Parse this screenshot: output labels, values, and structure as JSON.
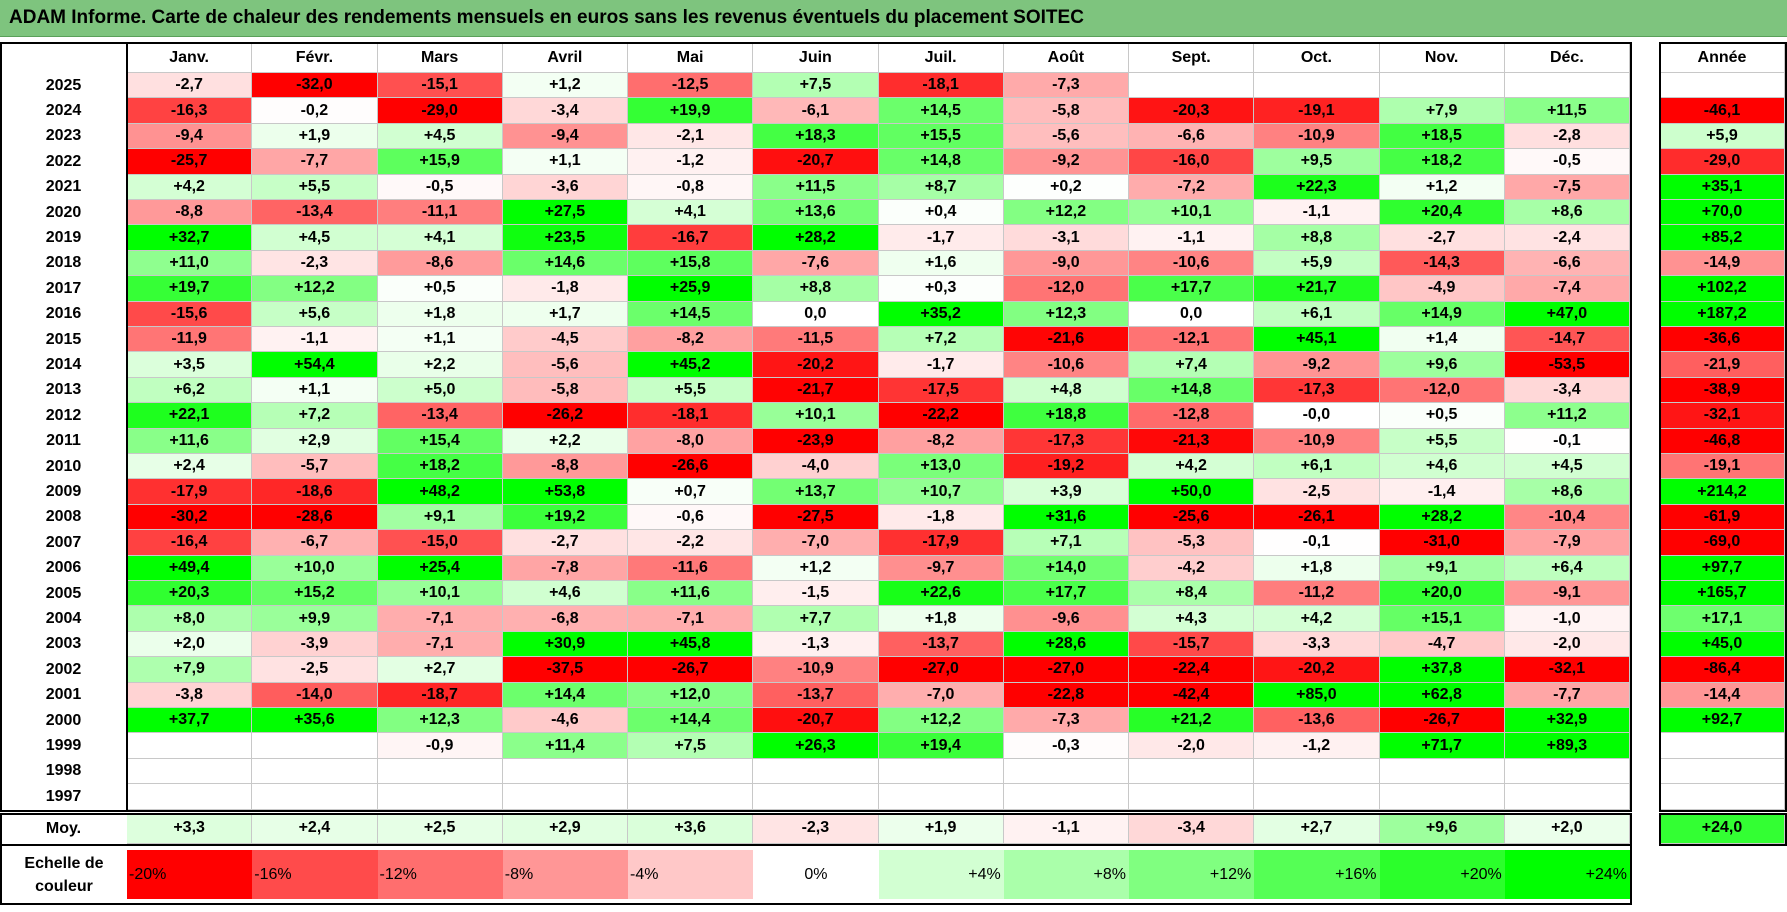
{
  "title": "ADAM Informe. Carte de chaleur des rendements mensuels en euros sans les revenus éventuels du placement SOITEC",
  "months": [
    "Janv.",
    "Févr.",
    "Mars",
    "Avril",
    "Mai",
    "Juin",
    "Juil.",
    "Août",
    "Sept.",
    "Oct.",
    "Nov.",
    "Déc."
  ],
  "year_header": "Année",
  "avg_label": "Moy.",
  "scale_label": "Echelle de couleur",
  "chart_data": {
    "type": "heatmap",
    "title": "ADAM Informe. Carte de chaleur des rendements mensuels en euros sans les revenus éventuels du placement SOITEC",
    "columns": [
      "Janv.",
      "Févr.",
      "Mars",
      "Avril",
      "Mai",
      "Juin",
      "Juil.",
      "Août",
      "Sept.",
      "Oct.",
      "Nov.",
      "Déc.",
      "Année"
    ],
    "rows": [
      {
        "year": "2025",
        "values": [
          "-2,7",
          "-32,0",
          "-15,1",
          "+1,2",
          "-12,5",
          "+7,5",
          "-18,1",
          "-7,3",
          "",
          "",
          "",
          ""
        ],
        "annual": ""
      },
      {
        "year": "2024",
        "values": [
          "-16,3",
          "-0,2",
          "-29,0",
          "-3,4",
          "+19,9",
          "-6,1",
          "+14,5",
          "-5,8",
          "-20,3",
          "-19,1",
          "+7,9",
          "+11,5"
        ],
        "annual": "-46,1"
      },
      {
        "year": "2023",
        "values": [
          "-9,4",
          "+1,9",
          "+4,5",
          "-9,4",
          "-2,1",
          "+18,3",
          "+15,5",
          "-5,6",
          "-6,6",
          "-10,9",
          "+18,5",
          "-2,8"
        ],
        "annual": "+5,9"
      },
      {
        "year": "2022",
        "values": [
          "-25,7",
          "-7,7",
          "+15,9",
          "+1,1",
          "-1,2",
          "-20,7",
          "+14,8",
          "-9,2",
          "-16,0",
          "+9,5",
          "+18,2",
          "-0,5"
        ],
        "annual": "-29,0"
      },
      {
        "year": "2021",
        "values": [
          "+4,2",
          "+5,5",
          "-0,5",
          "-3,6",
          "-0,8",
          "+11,5",
          "+8,7",
          "+0,2",
          "-7,2",
          "+22,3",
          "+1,2",
          "-7,5"
        ],
        "annual": "+35,1"
      },
      {
        "year": "2020",
        "values": [
          "-8,8",
          "-13,4",
          "-11,1",
          "+27,5",
          "+4,1",
          "+13,6",
          "+0,4",
          "+12,2",
          "+10,1",
          "-1,1",
          "+20,4",
          "+8,6"
        ],
        "annual": "+70,0"
      },
      {
        "year": "2019",
        "values": [
          "+32,7",
          "+4,5",
          "+4,1",
          "+23,5",
          "-16,7",
          "+28,2",
          "-1,7",
          "-3,1",
          "-1,1",
          "+8,8",
          "-2,7",
          "-2,4"
        ],
        "annual": "+85,2"
      },
      {
        "year": "2018",
        "values": [
          "+11,0",
          "-2,3",
          "-8,6",
          "+14,6",
          "+15,8",
          "-7,6",
          "+1,6",
          "-9,0",
          "-10,6",
          "+5,9",
          "-14,3",
          "-6,6"
        ],
        "annual": "-14,9"
      },
      {
        "year": "2017",
        "values": [
          "+19,7",
          "+12,2",
          "+0,5",
          "-1,8",
          "+25,9",
          "+8,8",
          "+0,3",
          "-12,0",
          "+17,7",
          "+21,7",
          "-4,9",
          "-7,4"
        ],
        "annual": "+102,2"
      },
      {
        "year": "2016",
        "values": [
          "-15,6",
          "+5,6",
          "+1,8",
          "+1,7",
          "+14,5",
          "0,0",
          "+35,2",
          "+12,3",
          "0,0",
          "+6,1",
          "+14,9",
          "+47,0"
        ],
        "annual": "+187,2"
      },
      {
        "year": "2015",
        "values": [
          "-11,9",
          "-1,1",
          "+1,1",
          "-4,5",
          "-8,2",
          "-11,5",
          "+7,2",
          "-21,6",
          "-12,1",
          "+45,1",
          "+1,4",
          "-14,7"
        ],
        "annual": "-36,6"
      },
      {
        "year": "2014",
        "values": [
          "+3,5",
          "+54,4",
          "+2,2",
          "-5,6",
          "+45,2",
          "-20,2",
          "-1,7",
          "-10,6",
          "+7,4",
          "-9,2",
          "+9,6",
          "-53,5"
        ],
        "annual": "-21,9"
      },
      {
        "year": "2013",
        "values": [
          "+6,2",
          "+1,1",
          "+5,0",
          "-5,8",
          "+5,5",
          "-21,7",
          "-17,5",
          "+4,8",
          "+14,8",
          "-17,3",
          "-12,0",
          "-3,4"
        ],
        "annual": "-38,9"
      },
      {
        "year": "2012",
        "values": [
          "+22,1",
          "+7,2",
          "-13,4",
          "-26,2",
          "-18,1",
          "+10,1",
          "-22,2",
          "+18,8",
          "-12,8",
          "-0,0",
          "+0,5",
          "+11,2"
        ],
        "annual": "-32,1"
      },
      {
        "year": "2011",
        "values": [
          "+11,6",
          "+2,9",
          "+15,4",
          "+2,2",
          "-8,0",
          "-23,9",
          "-8,2",
          "-17,3",
          "-21,3",
          "-10,9",
          "+5,5",
          "-0,1"
        ],
        "annual": "-46,8"
      },
      {
        "year": "2010",
        "values": [
          "+2,4",
          "-5,7",
          "+18,2",
          "-8,8",
          "-26,6",
          "-4,0",
          "+13,0",
          "-19,2",
          "+4,2",
          "+6,1",
          "+4,6",
          "+4,5"
        ],
        "annual": "-19,1"
      },
      {
        "year": "2009",
        "values": [
          "-17,9",
          "-18,6",
          "+48,2",
          "+53,8",
          "+0,7",
          "+13,7",
          "+10,7",
          "+3,9",
          "+50,0",
          "-2,5",
          "-1,4",
          "+8,6"
        ],
        "annual": "+214,2"
      },
      {
        "year": "2008",
        "values": [
          "-30,2",
          "-28,6",
          "+9,1",
          "+19,2",
          "-0,6",
          "-27,5",
          "-1,8",
          "+31,6",
          "-25,6",
          "-26,1",
          "+28,2",
          "-10,4"
        ],
        "annual": "-61,9"
      },
      {
        "year": "2007",
        "values": [
          "-16,4",
          "-6,7",
          "-15,0",
          "-2,7",
          "-2,2",
          "-7,0",
          "-17,9",
          "+7,1",
          "-5,3",
          "-0,1",
          "-31,0",
          "-7,9"
        ],
        "annual": "-69,0"
      },
      {
        "year": "2006",
        "values": [
          "+49,4",
          "+10,0",
          "+25,4",
          "-7,8",
          "-11,6",
          "+1,2",
          "-9,7",
          "+14,0",
          "-4,2",
          "+1,8",
          "+9,1",
          "+6,4"
        ],
        "annual": "+97,7"
      },
      {
        "year": "2005",
        "values": [
          "+20,3",
          "+15,2",
          "+10,1",
          "+4,6",
          "+11,6",
          "-1,5",
          "+22,6",
          "+17,7",
          "+8,4",
          "-11,2",
          "+20,0",
          "-9,1"
        ],
        "annual": "+165,7"
      },
      {
        "year": "2004",
        "values": [
          "+8,0",
          "+9,9",
          "-7,1",
          "-6,8",
          "-7,1",
          "+7,7",
          "+1,8",
          "-9,6",
          "+4,3",
          "+4,2",
          "+15,1",
          "-1,0"
        ],
        "annual": "+17,1"
      },
      {
        "year": "2003",
        "values": [
          "+2,0",
          "-3,9",
          "-7,1",
          "+30,9",
          "+45,8",
          "-1,3",
          "-13,7",
          "+28,6",
          "-15,7",
          "-3,3",
          "-4,7",
          "-2,0"
        ],
        "annual": "+45,0"
      },
      {
        "year": "2002",
        "values": [
          "+7,9",
          "-2,5",
          "+2,7",
          "-37,5",
          "-26,7",
          "-10,9",
          "-27,0",
          "-27,0",
          "-22,4",
          "-20,2",
          "+37,8",
          "-32,1"
        ],
        "annual": "-86,4"
      },
      {
        "year": "2001",
        "values": [
          "-3,8",
          "-14,0",
          "-18,7",
          "+14,4",
          "+12,0",
          "-13,7",
          "-7,0",
          "-22,8",
          "-42,4",
          "+85,0",
          "+62,8",
          "-7,7"
        ],
        "annual": "-14,4"
      },
      {
        "year": "2000",
        "values": [
          "+37,7",
          "+35,6",
          "+12,3",
          "-4,6",
          "+14,4",
          "-20,7",
          "+12,2",
          "-7,3",
          "+21,2",
          "-13,6",
          "-26,7",
          "+32,9"
        ],
        "annual": "+92,7"
      },
      {
        "year": "1999",
        "values": [
          "",
          "",
          "-0,9",
          "+11,4",
          "+7,5",
          "+26,3",
          "+19,4",
          "-0,3",
          "-2,0",
          "-1,2",
          "+71,7",
          "+89,3"
        ],
        "annual": ""
      },
      {
        "year": "1998",
        "values": [
          "",
          "",
          "",
          "",
          "",
          "",
          "",
          "",
          "",
          "",
          "",
          ""
        ],
        "annual": ""
      },
      {
        "year": "1997",
        "values": [
          "",
          "",
          "",
          "",
          "",
          "",
          "",
          "",
          "",
          "",
          "",
          ""
        ],
        "annual": ""
      }
    ],
    "average": {
      "values": [
        "+3,3",
        "+2,4",
        "+2,5",
        "+2,9",
        "+3,6",
        "-2,3",
        "+1,9",
        "-1,1",
        "-3,4",
        "+2,7",
        "+9,6",
        "+2,0"
      ],
      "annual": "+24,0"
    },
    "color_scale": {
      "labels": [
        "-20%",
        "-16%",
        "-12%",
        "-8%",
        "-4%",
        "0%",
        "+4%",
        "+8%",
        "+12%",
        "+16%",
        "+20%",
        "+24%"
      ],
      "colors": [
        "#ff0000",
        "#ff4b4b",
        "#ff6e6e",
        "#ff9696",
        "#ffc8c8",
        "#ffffff",
        "#d2ffd2",
        "#aaffaa",
        "#80ff80",
        "#55ff55",
        "#2bff2b",
        "#00ff00"
      ]
    }
  }
}
